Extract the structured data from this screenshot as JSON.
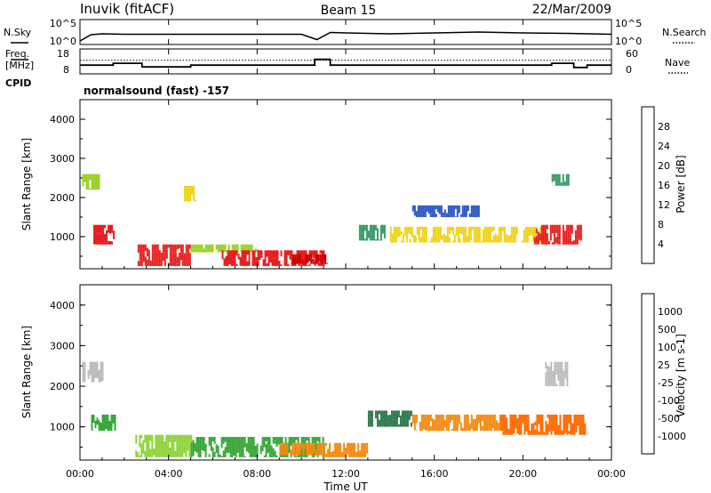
{
  "header": {
    "station": "Inuvik (fitACF)",
    "beam": "Beam 15",
    "date": "22/Mar/2009",
    "cpid_label": "CPID",
    "cpid_value": "normalsound (fast) -157"
  },
  "chart_data": [
    {
      "type": "line",
      "panel": "noise",
      "left_label": "N.Sky",
      "right_label": "N.Search",
      "left_ticks": [
        "10^5",
        "10^0"
      ],
      "right_ticks": [
        "10^5",
        "10^0"
      ],
      "scale": "log",
      "x_hours": [
        0,
        0.5,
        1,
        2,
        4,
        6,
        8,
        10,
        10.7,
        11.3,
        12,
        14,
        16,
        18,
        20,
        22,
        24
      ],
      "sky_log10": [
        0.6,
        2.0,
        2.2,
        2.1,
        2.1,
        2.1,
        2.1,
        2.1,
        0.9,
        2.5,
        2.4,
        2.2,
        2.4,
        2.6,
        2.4,
        2.3,
        2.1
      ]
    },
    {
      "type": "line",
      "panel": "frequency",
      "left_label": "Freq.",
      "left_units": "[MHz]",
      "right_label": "Nave",
      "left_ticks": [
        "18",
        "8"
      ],
      "right_ticks": [
        "60",
        "0"
      ],
      "ylim_left": [
        8,
        18
      ],
      "ylim_right": [
        0,
        60
      ],
      "freq_steps": [
        [
          0,
          11.4
        ],
        [
          1.5,
          12.2
        ],
        [
          2.8,
          10.6
        ],
        [
          5.0,
          11.4
        ],
        [
          10.6,
          13.9
        ],
        [
          11.3,
          11.4
        ],
        [
          21.3,
          12.2
        ],
        [
          22.3,
          10.4
        ],
        [
          22.9,
          11.4
        ],
        [
          24,
          11.4
        ]
      ],
      "nave_steps": [
        [
          0,
          33
        ],
        [
          24,
          33
        ]
      ]
    },
    {
      "type": "heatmap",
      "panel": "power",
      "ylabel": "Slant Range [km]",
      "colorbar_label": "Power [dB]",
      "colorbar_ticks": [
        "28",
        "24",
        "20",
        "16",
        "12",
        "8",
        "4"
      ],
      "colorbar_colors": [
        "#0000e6",
        "#2b55c8",
        "#3a9a6a",
        "#9dd12a",
        "#f0d21a",
        "#f58a10",
        "#e62020",
        "#cc0000"
      ],
      "ylim": [
        180,
        4500
      ],
      "y_ticks": [
        "4000",
        "3000",
        "2000",
        "1000"
      ],
      "regions": [
        {
          "t": [
            0.1,
            0.9
          ],
          "r": [
            2200,
            2600
          ],
          "v": 14
        },
        {
          "t": [
            0.6,
            1.5
          ],
          "r": [
            800,
            1300
          ],
          "v": 26
        },
        {
          "t": [
            2.6,
            5.0
          ],
          "r": [
            250,
            800
          ],
          "v": 27
        },
        {
          "t": [
            4.7,
            5.2
          ],
          "r": [
            1900,
            2300
          ],
          "v": 16
        },
        {
          "t": [
            5.0,
            8.0
          ],
          "r": [
            600,
            800
          ],
          "v": 14
        },
        {
          "t": [
            6.4,
            11.0
          ],
          "r": [
            250,
            650
          ],
          "v": 26
        },
        {
          "t": [
            9.6,
            11.2
          ],
          "r": [
            300,
            550
          ],
          "v": 29
        },
        {
          "t": [
            12.6,
            13.8
          ],
          "r": [
            900,
            1300
          ],
          "v": 10
        },
        {
          "t": [
            14.0,
            21.0
          ],
          "r": [
            850,
            1250
          ],
          "v": 19
        },
        {
          "t": [
            15.0,
            18.0
          ],
          "r": [
            1500,
            1800
          ],
          "v": 6
        },
        {
          "t": [
            20.5,
            22.6
          ],
          "r": [
            800,
            1300
          ],
          "v": 27
        },
        {
          "t": [
            21.3,
            22.1
          ],
          "r": [
            2300,
            2600
          ],
          "v": 9
        }
      ]
    },
    {
      "type": "heatmap",
      "panel": "velocity",
      "ylabel": "Slant Range [km]",
      "colorbar_label": "Velocity [m s-1]",
      "colorbar_ticks": [
        "1000",
        "500",
        "100",
        "25",
        "-25",
        "-100",
        "-500",
        "-1000"
      ],
      "colorbar_colors": [
        "#2840a8",
        "#2e7a4c",
        "#3aa63a",
        "#8fd23a",
        "#bdbdbd",
        "#f7c000",
        "#f58a10",
        "#ff6a00",
        "#e62020"
      ],
      "ylim": [
        180,
        4500
      ],
      "y_ticks": [
        "4000",
        "3000",
        "2000",
        "1000"
      ],
      "x_ticks": [
        "00:00",
        "04:00",
        "08:00",
        "12:00",
        "16:00",
        "20:00",
        "00:00"
      ],
      "xlabel": "Time UT",
      "regions": [
        {
          "t": [
            0.1,
            1.0
          ],
          "r": [
            2100,
            2600
          ],
          "v": 0
        },
        {
          "t": [
            0.5,
            1.6
          ],
          "r": [
            900,
            1300
          ],
          "v": 150
        },
        {
          "t": [
            2.5,
            5.0
          ],
          "r": [
            250,
            800
          ],
          "v": 100
        },
        {
          "t": [
            5.0,
            11.0
          ],
          "r": [
            250,
            750
          ],
          "v": 300
        },
        {
          "t": [
            9.0,
            11.0
          ],
          "r": [
            300,
            600
          ],
          "v": -150
        },
        {
          "t": [
            11.0,
            13.0
          ],
          "r": [
            250,
            600
          ],
          "v": -250
        },
        {
          "t": [
            13.0,
            15.0
          ],
          "r": [
            1000,
            1400
          ],
          "v": 700
        },
        {
          "t": [
            15.0,
            19.0
          ],
          "r": [
            900,
            1300
          ],
          "v": -400
        },
        {
          "t": [
            19.0,
            22.8
          ],
          "r": [
            800,
            1300
          ],
          "v": -500
        },
        {
          "t": [
            21.0,
            22.0
          ],
          "r": [
            2000,
            2600
          ],
          "v": 0
        }
      ]
    }
  ]
}
